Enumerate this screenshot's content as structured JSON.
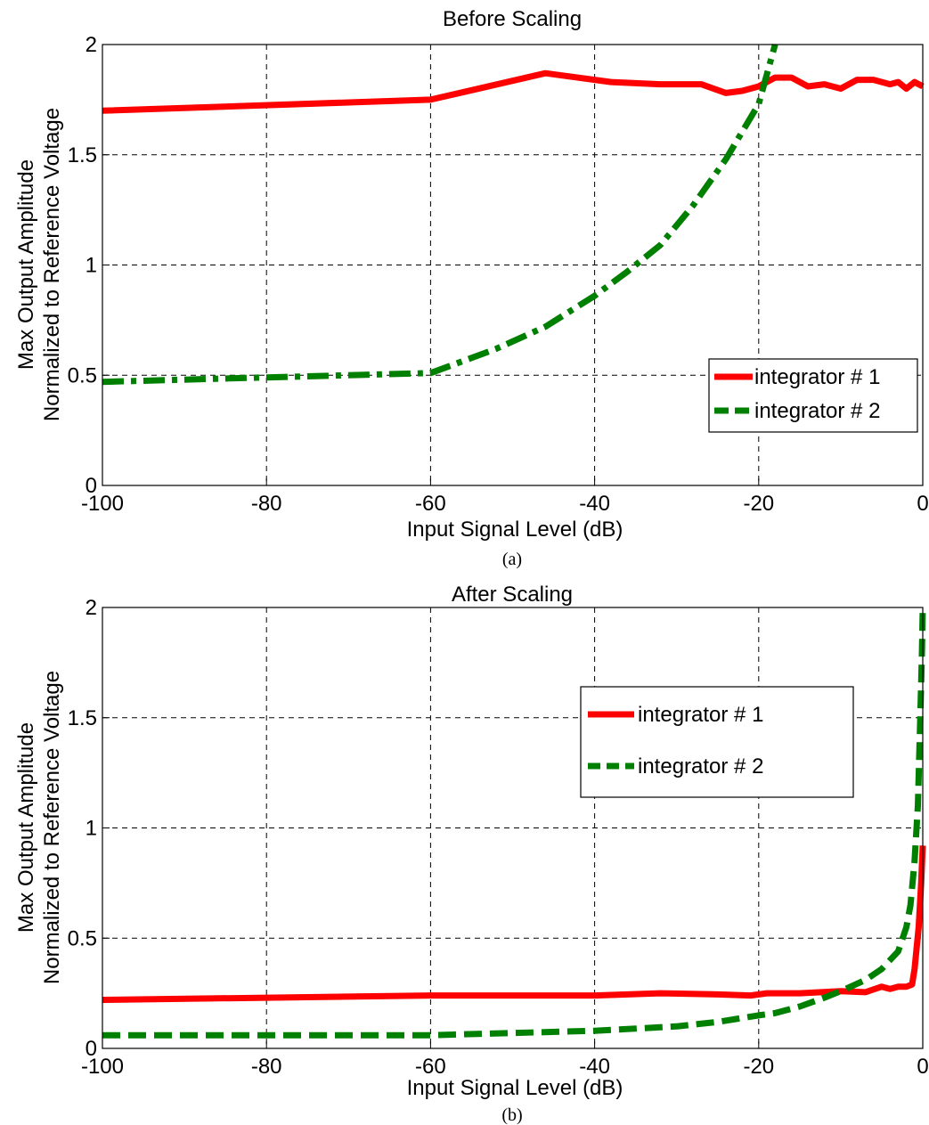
{
  "chart_data": [
    {
      "type": "line",
      "title": "Before Scaling",
      "xlabel": "Input Signal Level (dB)",
      "ylabel_line1": "Max Output Amplitude",
      "ylabel_line2": "Normalized to Reference Voltage",
      "caption": "(a)",
      "xlim": [
        -100,
        0
      ],
      "ylim": [
        0,
        2
      ],
      "xticks": [
        "-100",
        "-80",
        "-60",
        "-40",
        "-20",
        "0"
      ],
      "yticks": [
        "0",
        "0.5",
        "1",
        "1.5",
        "2"
      ],
      "grid": true,
      "legend_position": "right-middle",
      "series": [
        {
          "name": "integrator # 1",
          "color": "#ff0000",
          "style": "solid",
          "x": [
            -100,
            -60,
            -46,
            -38,
            -32,
            -27,
            -24,
            -22,
            -20,
            -18,
            -16,
            -14,
            -12,
            -10,
            -8,
            -6,
            -4,
            -3,
            -2,
            -1,
            0
          ],
          "y": [
            1.7,
            1.75,
            1.87,
            1.83,
            1.82,
            1.82,
            1.78,
            1.79,
            1.81,
            1.85,
            1.85,
            1.81,
            1.82,
            1.8,
            1.84,
            1.84,
            1.82,
            1.83,
            1.8,
            1.83,
            1.81
          ]
        },
        {
          "name": "integrator # 2",
          "color": "#008000",
          "style": "dashdot",
          "x": [
            -100,
            -80,
            -60,
            -52,
            -46,
            -40,
            -36,
            -32,
            -28,
            -24,
            -20,
            -18
          ],
          "y": [
            0.47,
            0.49,
            0.51,
            0.62,
            0.72,
            0.86,
            0.97,
            1.09,
            1.27,
            1.48,
            1.73,
            2.0
          ]
        }
      ]
    },
    {
      "type": "line",
      "title": "After Scaling",
      "xlabel": "Input Signal Level (dB)",
      "ylabel_line1": "Max Output Amplitude",
      "ylabel_line2": "Normalized to Reference Voltage",
      "caption": "(b)",
      "xlim": [
        -100,
        0
      ],
      "ylim": [
        0,
        2
      ],
      "xticks": [
        "-100",
        "-80",
        "-60",
        "-40",
        "-20",
        "0"
      ],
      "yticks": [
        "0",
        "0.5",
        "1",
        "1.5",
        "2"
      ],
      "grid": true,
      "legend_position": "top-right",
      "series": [
        {
          "name": "integrator # 1",
          "color": "#ff0000",
          "style": "solid",
          "x": [
            -100,
            -80,
            -60,
            -40,
            -32,
            -25,
            -21,
            -19,
            -15,
            -10,
            -7,
            -5,
            -4,
            -3,
            -2,
            -1.3,
            -1,
            -0.5,
            -0.2,
            0
          ],
          "y": [
            0.22,
            0.23,
            0.24,
            0.24,
            0.25,
            0.245,
            0.24,
            0.25,
            0.25,
            0.26,
            0.255,
            0.28,
            0.27,
            0.28,
            0.28,
            0.29,
            0.36,
            0.55,
            0.75,
            0.92
          ]
        },
        {
          "name": "integrator # 2",
          "color": "#008000",
          "style": "dashed",
          "x": [
            -100,
            -80,
            -60,
            -50,
            -40,
            -30,
            -25,
            -20,
            -18,
            -15,
            -12,
            -10,
            -7,
            -5,
            -3,
            -2,
            -1.5,
            -1,
            -0.6,
            -0.3,
            -0.1,
            0
          ],
          "y": [
            0.06,
            0.06,
            0.06,
            0.07,
            0.08,
            0.1,
            0.12,
            0.15,
            0.16,
            0.19,
            0.23,
            0.26,
            0.31,
            0.36,
            0.44,
            0.55,
            0.65,
            0.85,
            1.1,
            1.5,
            1.8,
            2.0
          ]
        }
      ]
    }
  ]
}
